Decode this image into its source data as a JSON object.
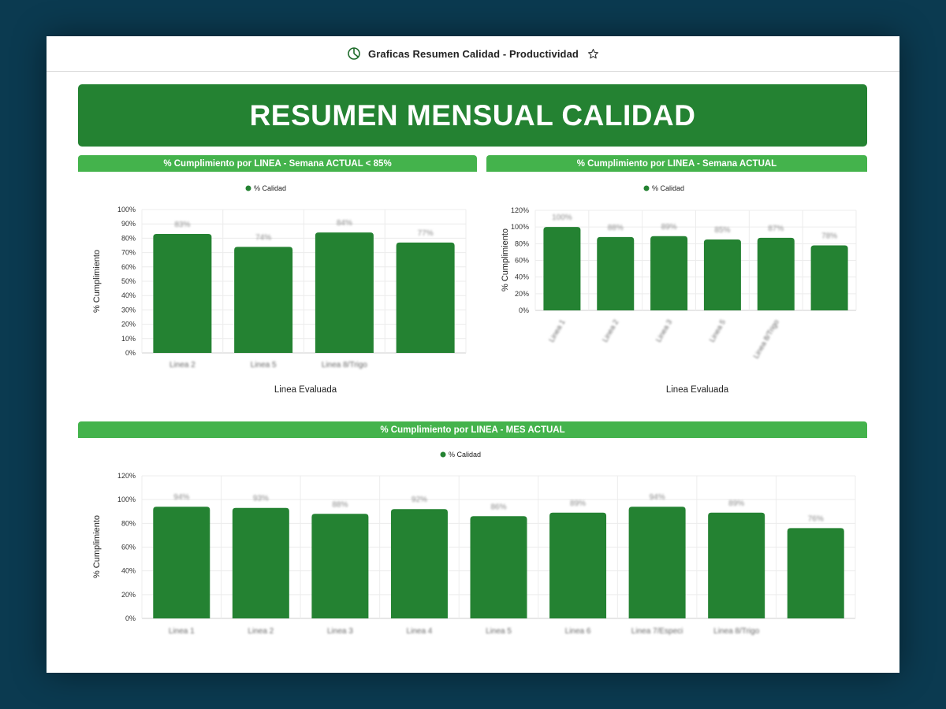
{
  "window": {
    "title": "Graficas Resumen Calidad - Productividad"
  },
  "icons": {
    "app": "pie-chart-icon",
    "star": "star-icon"
  },
  "colors": {
    "bar": "#248232",
    "banner": "#248232",
    "section_header": "#44b34c",
    "background": "#0b3a50"
  },
  "banner": {
    "title": "RESUMEN MENSUAL CALIDAD"
  },
  "sections": [
    {
      "title": "% Cumplimiento por LINEA - Semana ACTUAL < 85%"
    },
    {
      "title": "% Cumplimiento por LINEA - Semana ACTUAL"
    },
    {
      "title": "% Cumplimiento por LINEA - MES ACTUAL"
    }
  ],
  "chart_data": [
    {
      "type": "bar",
      "legend": "% Calidad",
      "legend_position": "top",
      "ylabel": "% Cumplimiento",
      "xlabel": "Linea Evaluada",
      "ylim": [
        0,
        100
      ],
      "yticks": [
        "0%",
        "10%",
        "20%",
        "30%",
        "40%",
        "50%",
        "60%",
        "70%",
        "80%",
        "90%",
        "100%"
      ],
      "categories": [
        "Linea 2",
        "Linea 5",
        "Linea 8/Trigo",
        ""
      ],
      "values": [
        83,
        74,
        84,
        77
      ],
      "data_labels": [
        "83%",
        "74%",
        "84%",
        "77%"
      ],
      "grid": true
    },
    {
      "type": "bar",
      "legend": "% Calidad",
      "legend_position": "top",
      "ylabel": "% Cumplimiento",
      "xlabel": "Linea Evaluada",
      "ylim": [
        0,
        120
      ],
      "yticks": [
        "0%",
        "20%",
        "40%",
        "60%",
        "80%",
        "100%",
        "120%"
      ],
      "categories": [
        "Linea 1",
        "Linea 2",
        "Linea 3",
        "Linea 5",
        "Linea 8/Trigo",
        ""
      ],
      "values": [
        100,
        88,
        89,
        85,
        87,
        78
      ],
      "data_labels": [
        "100%",
        "88%",
        "89%",
        "85%",
        "87%",
        "78%"
      ],
      "grid": true
    },
    {
      "type": "bar",
      "legend": "% Calidad",
      "legend_position": "top",
      "ylabel": "% Cumplimiento",
      "xlabel": "Linea Evaluada",
      "ylim": [
        0,
        120
      ],
      "yticks": [
        "0%",
        "20%",
        "40%",
        "60%",
        "80%",
        "100%",
        "120%"
      ],
      "categories": [
        "Linea 1",
        "Linea 2",
        "Linea 3",
        "Linea 4",
        "Linea 5",
        "Linea 6",
        "Linea 7/Especi",
        "Linea 8/Trigo",
        ""
      ],
      "values": [
        94,
        93,
        88,
        92,
        86,
        89,
        94,
        89,
        76
      ],
      "data_labels": [
        "94%",
        "93%",
        "88%",
        "92%",
        "86%",
        "89%",
        "94%",
        "89%",
        "76%"
      ],
      "grid": true
    }
  ]
}
